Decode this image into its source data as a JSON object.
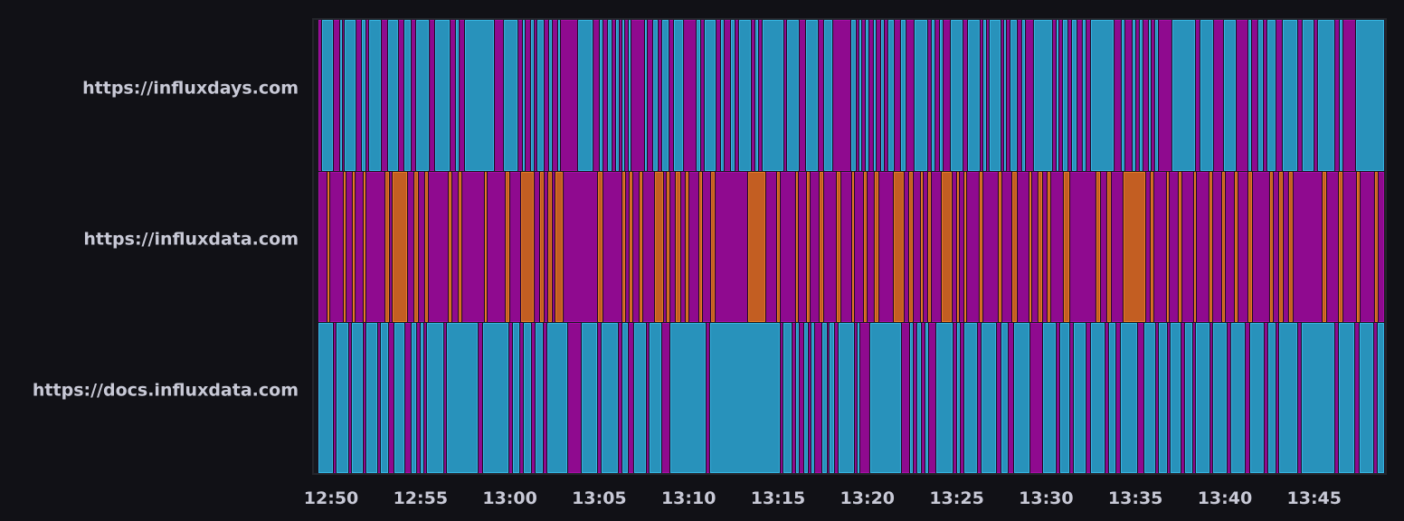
{
  "chart_data": {
    "type": "state-timeline",
    "title": "",
    "x_unit": "minutes after 12:50",
    "x_range": [
      -0.71,
      58.91
    ],
    "x_ticks": [
      {
        "value": 0,
        "label": "12:50"
      },
      {
        "value": 5,
        "label": "12:55"
      },
      {
        "value": 10,
        "label": "13:00"
      },
      {
        "value": 15,
        "label": "13:05"
      },
      {
        "value": 20,
        "label": "13:10"
      },
      {
        "value": 25,
        "label": "13:15"
      },
      {
        "value": 30,
        "label": "13:20"
      },
      {
        "value": 35,
        "label": "13:25"
      },
      {
        "value": 40,
        "label": "13:30"
      },
      {
        "value": 45,
        "label": "13:35"
      },
      {
        "value": 50,
        "label": "13:40"
      },
      {
        "value": 55,
        "label": "13:45"
      }
    ],
    "states": {
      "cyan": {
        "fill": "#2892bb",
        "stroke": "#36b6e3"
      },
      "magenta": {
        "fill": "#8f0a8f",
        "stroke": "#a80fa8"
      },
      "orange": {
        "fill": "#c35e22",
        "stroke": "#ea7a26"
      }
    },
    "rows": [
      {
        "label": "https://influxdays.com",
        "base_state": "magenta",
        "segment_state": "cyan",
        "segments": [
          [
            -0.51,
            0.1
          ],
          [
            0.51,
            0.61
          ],
          [
            0.76,
            1.37
          ],
          [
            1.72,
            1.92
          ],
          [
            2.13,
            2.78
          ],
          [
            3.19,
            3.74
          ],
          [
            4.1,
            4.45
          ],
          [
            4.76,
            5.47
          ],
          [
            5.82,
            6.63
          ],
          [
            6.98,
            7.14
          ],
          [
            7.49,
            9.11
          ],
          [
            9.67,
            10.43
          ],
          [
            10.73,
            10.83
          ],
          [
            11.18,
            11.34
          ],
          [
            11.54,
            11.89
          ],
          [
            12.2,
            12.35
          ],
          [
            12.7,
            12.8
          ],
          [
            13.82,
            14.63
          ],
          [
            15.03,
            15.18
          ],
          [
            15.49,
            15.69
          ],
          [
            15.94,
            16.09
          ],
          [
            16.3,
            16.4
          ],
          [
            16.65,
            16.75
          ],
          [
            17.56,
            17.66
          ],
          [
            18.02,
            18.27
          ],
          [
            18.52,
            18.88
          ],
          [
            19.18,
            19.69
          ],
          [
            20.45,
            20.65
          ],
          [
            20.9,
            21.51
          ],
          [
            21.81,
            21.96
          ],
          [
            22.37,
            22.57
          ],
          [
            22.82,
            23.48
          ],
          [
            23.74,
            23.89
          ],
          [
            24.14,
            25.3
          ],
          [
            25.51,
            26.16
          ],
          [
            26.57,
            27.23
          ],
          [
            27.58,
            28.04
          ],
          [
            29.1,
            29.35
          ],
          [
            29.55,
            29.66
          ],
          [
            29.91,
            30.06
          ],
          [
            30.36,
            30.47
          ],
          [
            30.77,
            30.92
          ],
          [
            31.17,
            31.48
          ],
          [
            31.88,
            32.14
          ],
          [
            32.64,
            33.35
          ],
          [
            33.6,
            33.76
          ],
          [
            34.06,
            34.21
          ],
          [
            34.67,
            35.32
          ],
          [
            35.63,
            36.28
          ],
          [
            36.49,
            36.64
          ],
          [
            36.84,
            37.45
          ],
          [
            37.65,
            37.75
          ],
          [
            38.01,
            38.36
          ],
          [
            38.66,
            38.82
          ],
          [
            39.32,
            40.33
          ],
          [
            40.59,
            40.69
          ],
          [
            40.94,
            41.19
          ],
          [
            41.45,
            41.7
          ],
          [
            42.05,
            42.21
          ],
          [
            42.51,
            43.78
          ],
          [
            44.23,
            44.38
          ],
          [
            44.84,
            44.99
          ],
          [
            45.24,
            45.39
          ],
          [
            45.75,
            45.85
          ],
          [
            46.1,
            46.26
          ],
          [
            47.06,
            48.33
          ],
          [
            48.63,
            49.34
          ],
          [
            49.95,
            50.61
          ],
          [
            51.32,
            51.47
          ],
          [
            51.87,
            52.13
          ],
          [
            52.38,
            52.83
          ],
          [
            53.24,
            54.05
          ],
          [
            54.35,
            54.96
          ],
          [
            55.21,
            56.12
          ],
          [
            56.43,
            56.58
          ],
          [
            57.34,
            58.91
          ]
        ]
      },
      {
        "label": "https://influxdata.com",
        "base_state": "magenta",
        "segment_state": "orange",
        "segments": [
          [
            -0.2,
            -0.1
          ],
          [
            0.71,
            0.81
          ],
          [
            1.21,
            1.32
          ],
          [
            1.82,
            1.92
          ],
          [
            3.04,
            3.24
          ],
          [
            3.44,
            4.25
          ],
          [
            4.66,
            4.86
          ],
          [
            5.26,
            5.41
          ],
          [
            6.58,
            6.73
          ],
          [
            7.14,
            7.29
          ],
          [
            8.6,
            8.7
          ],
          [
            9.77,
            9.97
          ],
          [
            10.63,
            11.34
          ],
          [
            11.69,
            11.89
          ],
          [
            12.15,
            12.35
          ],
          [
            12.55,
            12.96
          ],
          [
            14.93,
            15.18
          ],
          [
            16.3,
            16.45
          ],
          [
            16.7,
            16.85
          ],
          [
            17.26,
            17.41
          ],
          [
            18.12,
            18.57
          ],
          [
            18.78,
            18.93
          ],
          [
            19.28,
            19.53
          ],
          [
            19.84,
            19.99
          ],
          [
            20.6,
            20.75
          ],
          [
            21.26,
            21.46
          ],
          [
            23.33,
            24.29
          ],
          [
            24.95,
            25.1
          ],
          [
            26.01,
            26.11
          ],
          [
            26.62,
            26.77
          ],
          [
            27.33,
            27.53
          ],
          [
            28.29,
            28.49
          ],
          [
            29.15,
            29.25
          ],
          [
            29.81,
            29.96
          ],
          [
            30.41,
            30.62
          ],
          [
            31.48,
            32.03
          ],
          [
            32.34,
            32.54
          ],
          [
            33.0,
            33.1
          ],
          [
            33.4,
            33.55
          ],
          [
            34.16,
            34.72
          ],
          [
            35.02,
            35.12
          ],
          [
            35.43,
            35.53
          ],
          [
            36.28,
            36.44
          ],
          [
            37.35,
            37.5
          ],
          [
            38.11,
            38.36
          ],
          [
            39.07,
            39.17
          ],
          [
            39.57,
            39.78
          ],
          [
            40.08,
            40.23
          ],
          [
            40.99,
            41.3
          ],
          [
            42.81,
            43.02
          ],
          [
            43.42,
            43.62
          ],
          [
            44.33,
            45.55
          ],
          [
            45.85,
            46.0
          ],
          [
            46.76,
            46.86
          ],
          [
            47.42,
            47.57
          ],
          [
            48.28,
            48.38
          ],
          [
            49.14,
            49.29
          ],
          [
            49.85,
            50.0
          ],
          [
            50.56,
            50.71
          ],
          [
            51.32,
            51.52
          ],
          [
            52.53,
            52.68
          ],
          [
            53.04,
            53.24
          ],
          [
            53.59,
            53.79
          ],
          [
            55.47,
            55.67
          ],
          [
            56.38,
            56.58
          ],
          [
            57.39,
            57.54
          ],
          [
            58.4,
            58.55
          ]
        ]
      },
      {
        "label": "https://docs.influxdata.com",
        "base_state": "magenta",
        "segment_state": "cyan",
        "segments": [
          [
            -0.71,
            0.1
          ],
          [
            0.3,
            0.96
          ],
          [
            1.16,
            1.77
          ],
          [
            1.97,
            2.58
          ],
          [
            2.78,
            3.19
          ],
          [
            3.54,
            4.1
          ],
          [
            4.5,
            4.76
          ],
          [
            5.01,
            5.16
          ],
          [
            5.36,
            6.28
          ],
          [
            6.48,
            8.2
          ],
          [
            8.5,
            9.92
          ],
          [
            10.17,
            10.53
          ],
          [
            10.78,
            11.18
          ],
          [
            11.44,
            11.84
          ],
          [
            12.1,
            13.21
          ],
          [
            14.02,
            14.88
          ],
          [
            15.13,
            16.04
          ],
          [
            16.3,
            16.6
          ],
          [
            16.95,
            17.61
          ],
          [
            17.81,
            18.47
          ],
          [
            18.98,
            20.95
          ],
          [
            21.2,
            25.1
          ],
          [
            25.3,
            25.76
          ],
          [
            26.01,
            26.16
          ],
          [
            26.47,
            26.67
          ],
          [
            26.87,
            27.02
          ],
          [
            27.48,
            27.73
          ],
          [
            27.88,
            28.14
          ],
          [
            28.39,
            29.25
          ],
          [
            29.45,
            29.55
          ],
          [
            30.16,
            31.88
          ],
          [
            32.39,
            32.54
          ],
          [
            32.79,
            33.0
          ],
          [
            33.25,
            33.4
          ],
          [
            33.86,
            34.77
          ],
          [
            35.02,
            35.17
          ],
          [
            35.43,
            36.13
          ],
          [
            36.39,
            37.2
          ],
          [
            37.5,
            37.85
          ],
          [
            38.21,
            39.07
          ],
          [
            39.83,
            40.54
          ],
          [
            40.79,
            41.3
          ],
          [
            41.55,
            42.21
          ],
          [
            42.51,
            43.27
          ],
          [
            43.52,
            43.88
          ],
          [
            44.18,
            45.09
          ],
          [
            45.5,
            46.1
          ],
          [
            46.31,
            46.76
          ],
          [
            46.96,
            47.52
          ],
          [
            47.77,
            48.18
          ],
          [
            48.38,
            49.14
          ],
          [
            49.34,
            50.1
          ],
          [
            50.35,
            51.11
          ],
          [
            51.42,
            52.17
          ],
          [
            52.43,
            52.83
          ],
          [
            53.04,
            54.05
          ],
          [
            54.3,
            56.12
          ],
          [
            56.38,
            57.24
          ],
          [
            57.54,
            58.3
          ],
          [
            58.55,
            58.91
          ]
        ]
      }
    ]
  }
}
